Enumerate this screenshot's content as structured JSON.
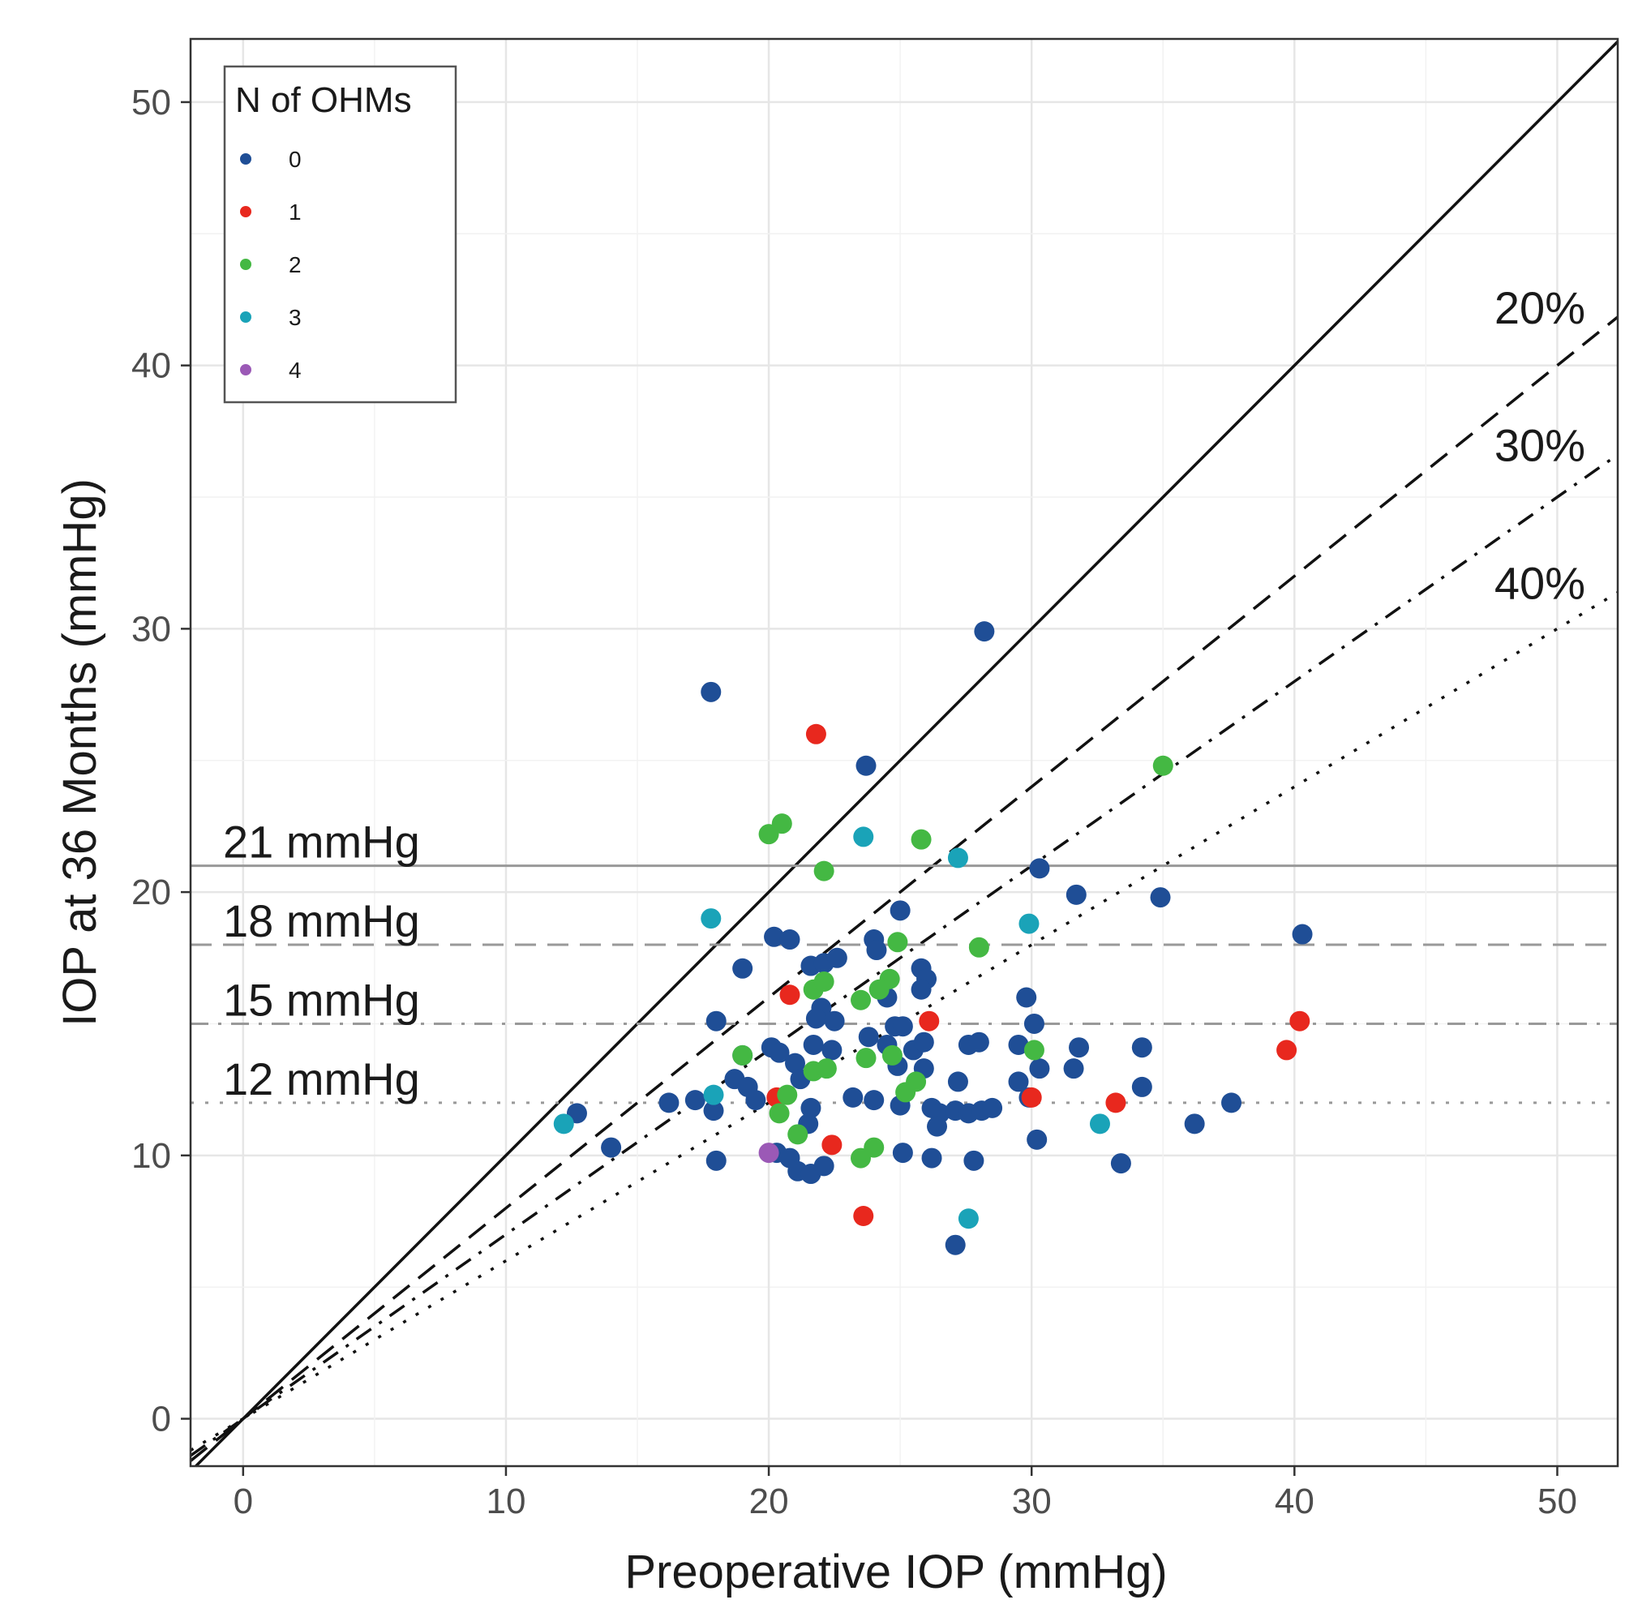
{
  "chart_data": {
    "type": "scatter",
    "xlabel": "Preoperative IOP (mmHg)",
    "ylabel": "IOP at 36 Months (mmHg)",
    "xlim": [
      -2,
      52.3
    ],
    "ylim": [
      -1.8,
      52.4
    ],
    "x_ticks": [
      0,
      10,
      20,
      30,
      40,
      50
    ],
    "y_ticks": [
      0,
      10,
      20,
      30,
      40,
      50
    ],
    "grid": true,
    "legend": {
      "title": "N of OHMs",
      "placement": "top-left",
      "entries": [
        {
          "label": "0",
          "color": "#1f4e96"
        },
        {
          "label": "1",
          "color": "#e8281e"
        },
        {
          "label": "2",
          "color": "#44b843"
        },
        {
          "label": "3",
          "color": "#1aa3b8"
        },
        {
          "label": "4",
          "color": "#9b59b6"
        }
      ]
    },
    "reference_lines": [
      {
        "kind": "diagonal",
        "label": "",
        "slope": 1.0,
        "style": "solid"
      },
      {
        "kind": "diagonal",
        "label": "20%",
        "slope": 0.8,
        "style": "dashed"
      },
      {
        "kind": "diagonal",
        "label": "30%",
        "slope": 0.7,
        "style": "dotdash"
      },
      {
        "kind": "diagonal",
        "label": "40%",
        "slope": 0.6,
        "style": "dotted"
      },
      {
        "kind": "horizontal",
        "label": "21 mmHg",
        "y": 21,
        "style": "solid"
      },
      {
        "kind": "horizontal",
        "label": "18 mmHg",
        "y": 18,
        "style": "dashed"
      },
      {
        "kind": "horizontal",
        "label": "15 mmHg",
        "y": 15,
        "style": "dotdash"
      },
      {
        "kind": "horizontal",
        "label": "12 mmHg",
        "y": 12,
        "style": "dotted"
      }
    ],
    "series": [
      {
        "name": "0",
        "color": "#1f4e96",
        "points": [
          [
            28.2,
            29.9
          ],
          [
            17.8,
            27.6
          ],
          [
            23.7,
            24.8
          ],
          [
            30.3,
            20.9
          ],
          [
            31.7,
            19.9
          ],
          [
            34.9,
            19.8
          ],
          [
            25.0,
            19.3
          ],
          [
            40.3,
            18.4
          ],
          [
            20.2,
            18.3
          ],
          [
            20.8,
            18.2
          ],
          [
            24.0,
            18.2
          ],
          [
            24.1,
            17.8
          ],
          [
            19.0,
            17.1
          ],
          [
            21.6,
            17.2
          ],
          [
            22.1,
            17.3
          ],
          [
            22.6,
            17.5
          ],
          [
            25.8,
            17.1
          ],
          [
            26.0,
            16.7
          ],
          [
            25.8,
            16.3
          ],
          [
            24.5,
            16.0
          ],
          [
            22.0,
            15.6
          ],
          [
            21.8,
            15.2
          ],
          [
            22.5,
            15.1
          ],
          [
            29.8,
            16.0
          ],
          [
            30.1,
            15.0
          ],
          [
            18.0,
            15.1
          ],
          [
            24.8,
            14.9
          ],
          [
            25.1,
            14.9
          ],
          [
            23.8,
            14.5
          ],
          [
            24.5,
            14.2
          ],
          [
            25.5,
            14.0
          ],
          [
            21.7,
            14.2
          ],
          [
            22.4,
            14.0
          ],
          [
            20.1,
            14.1
          ],
          [
            20.4,
            13.9
          ],
          [
            21.0,
            13.5
          ],
          [
            25.9,
            14.3
          ],
          [
            27.6,
            14.2
          ],
          [
            28.0,
            14.3
          ],
          [
            29.5,
            14.2
          ],
          [
            31.8,
            14.1
          ],
          [
            34.2,
            14.1
          ],
          [
            19.0,
            13.8
          ],
          [
            24.9,
            13.4
          ],
          [
            25.9,
            13.3
          ],
          [
            30.3,
            13.3
          ],
          [
            31.6,
            13.3
          ],
          [
            18.7,
            12.9
          ],
          [
            19.2,
            12.6
          ],
          [
            21.2,
            12.9
          ],
          [
            27.2,
            12.8
          ],
          [
            29.5,
            12.8
          ],
          [
            34.2,
            12.6
          ],
          [
            23.2,
            12.2
          ],
          [
            24.0,
            12.1
          ],
          [
            25.0,
            11.9
          ],
          [
            26.2,
            11.8
          ],
          [
            26.5,
            11.6
          ],
          [
            27.1,
            11.7
          ],
          [
            27.6,
            11.6
          ],
          [
            28.1,
            11.7
          ],
          [
            28.5,
            11.8
          ],
          [
            29.9,
            12.2
          ],
          [
            37.6,
            12.0
          ],
          [
            12.7,
            11.6
          ],
          [
            16.2,
            12.0
          ],
          [
            17.2,
            12.1
          ],
          [
            17.9,
            11.7
          ],
          [
            19.5,
            12.1
          ],
          [
            21.6,
            11.8
          ],
          [
            21.5,
            11.2
          ],
          [
            26.4,
            11.1
          ],
          [
            36.2,
            11.2
          ],
          [
            30.2,
            10.6
          ],
          [
            14.0,
            10.3
          ],
          [
            20.3,
            10.1
          ],
          [
            20.8,
            9.9
          ],
          [
            21.1,
            9.4
          ],
          [
            21.6,
            9.3
          ],
          [
            22.1,
            9.6
          ],
          [
            25.1,
            10.1
          ],
          [
            26.2,
            9.9
          ],
          [
            27.8,
            9.8
          ],
          [
            33.4,
            9.7
          ],
          [
            18.0,
            9.8
          ],
          [
            27.1,
            6.6
          ]
        ]
      },
      {
        "name": "1",
        "color": "#e8281e",
        "points": [
          [
            21.8,
            26.0
          ],
          [
            20.8,
            16.1
          ],
          [
            26.1,
            15.1
          ],
          [
            40.2,
            15.1
          ],
          [
            39.7,
            14.0
          ],
          [
            20.3,
            12.2
          ],
          [
            30.0,
            12.2
          ],
          [
            33.2,
            12.0
          ],
          [
            22.4,
            10.4
          ],
          [
            23.6,
            7.7
          ]
        ]
      },
      {
        "name": "2",
        "color": "#44b843",
        "points": [
          [
            35.0,
            24.8
          ],
          [
            20.5,
            22.6
          ],
          [
            20.0,
            22.2
          ],
          [
            25.8,
            22.0
          ],
          [
            22.1,
            20.8
          ],
          [
            24.9,
            18.1
          ],
          [
            28.0,
            17.9
          ],
          [
            21.7,
            16.3
          ],
          [
            22.1,
            16.6
          ],
          [
            23.5,
            15.9
          ],
          [
            24.6,
            16.7
          ],
          [
            24.2,
            16.3
          ],
          [
            30.1,
            14.0
          ],
          [
            23.7,
            13.7
          ],
          [
            24.7,
            13.8
          ],
          [
            21.7,
            13.2
          ],
          [
            22.2,
            13.3
          ],
          [
            25.6,
            12.8
          ],
          [
            25.2,
            12.4
          ],
          [
            20.7,
            12.3
          ],
          [
            19.0,
            13.8
          ],
          [
            20.4,
            11.6
          ],
          [
            21.1,
            10.8
          ],
          [
            23.5,
            9.9
          ],
          [
            24.0,
            10.3
          ]
        ]
      },
      {
        "name": "3",
        "color": "#1aa3b8",
        "points": [
          [
            23.6,
            22.1
          ],
          [
            27.2,
            21.3
          ],
          [
            17.8,
            19.0
          ],
          [
            29.9,
            18.8
          ],
          [
            17.9,
            12.3
          ],
          [
            12.2,
            11.2
          ],
          [
            32.6,
            11.2
          ],
          [
            27.6,
            7.6
          ]
        ]
      },
      {
        "name": "4",
        "color": "#9b59b6",
        "points": [
          [
            20.0,
            10.1
          ]
        ]
      }
    ]
  }
}
